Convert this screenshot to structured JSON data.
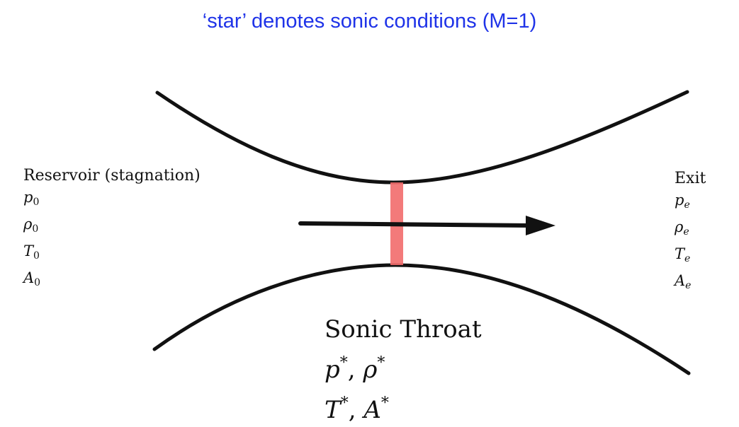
{
  "heading": "‘star’ denotes sonic conditions (M=1)",
  "reservoir": {
    "title": "Reservoir (stagnation)",
    "rows": [
      {
        "sym": "p",
        "sub": "0"
      },
      {
        "sym": "ρ",
        "sub": "0"
      },
      {
        "sym": "T",
        "sub": "0"
      },
      {
        "sym": "A",
        "sub": "0"
      }
    ]
  },
  "exit": {
    "title": "Exit",
    "rows": [
      {
        "sym": "p",
        "sub": "e"
      },
      {
        "sym": "ρ",
        "sub": "e"
      },
      {
        "sym": "T",
        "sub": "e"
      },
      {
        "sym": "A",
        "sub": "e"
      }
    ]
  },
  "throat": {
    "title": "Sonic Throat",
    "line1": [
      {
        "sym": "p",
        "sup": "*"
      },
      {
        "sym": "ρ",
        "sup": "*"
      }
    ],
    "line2": [
      {
        "sym": "T",
        "sup": "*"
      },
      {
        "sym": "A",
        "sup": "*"
      }
    ],
    "separator": ","
  },
  "colors": {
    "heading": "#1f33e8",
    "throat_marker": "#f26b6b",
    "wall": "#111111"
  }
}
